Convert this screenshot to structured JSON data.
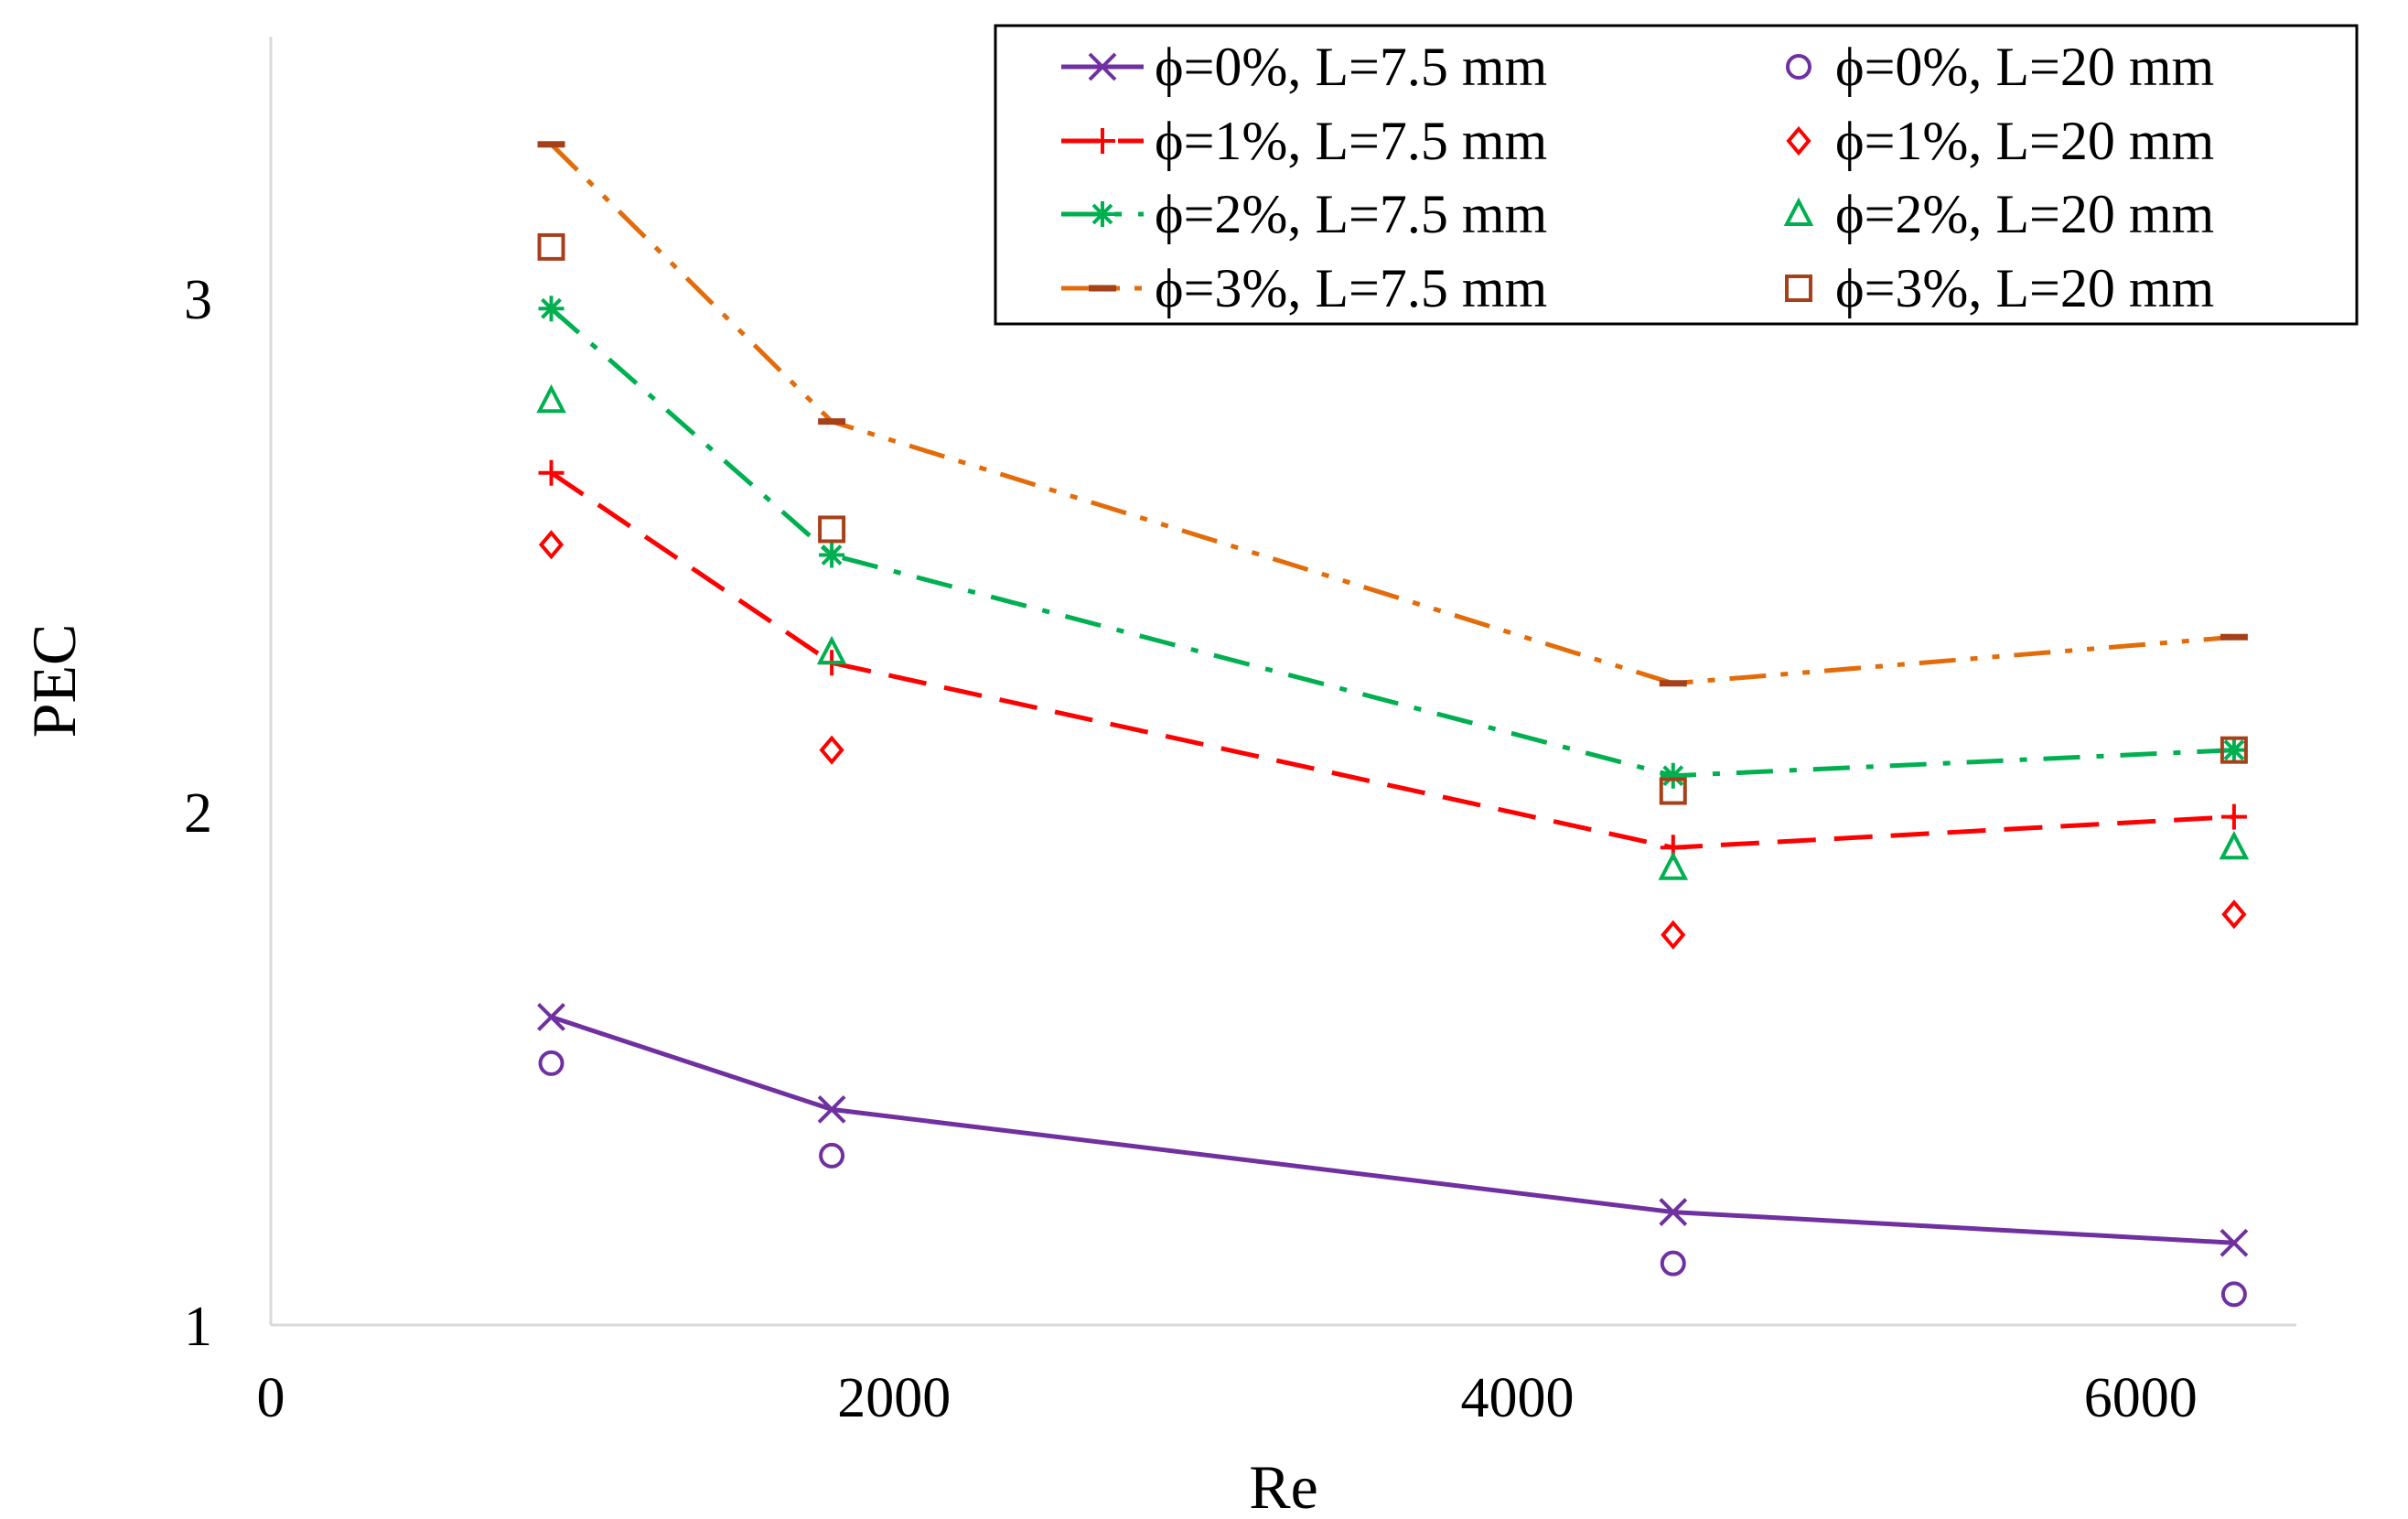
{
  "chart_data": {
    "type": "line",
    "title": "",
    "xlabel": "Re",
    "ylabel": "PEC",
    "xlim": [
      0,
      6500
    ],
    "ylim": [
      1,
      3.5
    ],
    "xticks": [
      0,
      2000,
      4000,
      6000
    ],
    "xtick_labels": [
      "0",
      "2000",
      "4000",
      "6000"
    ],
    "yticks": [
      1,
      2,
      3
    ],
    "ytick_labels": [
      "1",
      "2",
      "3"
    ],
    "grid": false,
    "legend_position": "top-right",
    "x": [
      900,
      1800,
      4500,
      6300
    ],
    "series": [
      {
        "name": "ϕ=0%, L=7.5 mm",
        "color": "#7030a0",
        "marker": "x",
        "line": "solid",
        "values": [
          1.6,
          1.42,
          1.22,
          1.16
        ]
      },
      {
        "name": "ϕ=1%, L=7.5 mm",
        "color": "#ff0000",
        "marker": "plus",
        "line": "dashed",
        "values": [
          2.66,
          2.29,
          1.93,
          1.99
        ]
      },
      {
        "name": "ϕ=2%, L=7.5 mm",
        "color": "#00b050",
        "marker": "asterisk",
        "line": "dashdot",
        "values": [
          2.98,
          2.5,
          2.07,
          2.12
        ]
      },
      {
        "name": "ϕ=3%, L=7.5 mm",
        "color": "#e36c0a",
        "marker": "dash",
        "markerColor": "#a5401b",
        "line": "dashdotdot",
        "values": [
          3.3,
          2.76,
          2.25,
          2.34
        ]
      },
      {
        "name": "ϕ=0%, L=20 mm",
        "color": "#7030a0",
        "marker": "circle",
        "line": "none",
        "values": [
          1.51,
          1.33,
          1.12,
          1.06
        ]
      },
      {
        "name": "ϕ=1%, L=20 mm",
        "color": "#ff0000",
        "marker": "diamond",
        "line": "none",
        "values": [
          2.52,
          2.12,
          1.76,
          1.8
        ]
      },
      {
        "name": "ϕ=2%, L=20 mm",
        "color": "#00b050",
        "marker": "triangle",
        "line": "none",
        "values": [
          2.8,
          2.31,
          1.89,
          1.93
        ]
      },
      {
        "name": "ϕ=3%, L=20 mm",
        "color": "#a5401b",
        "marker": "square",
        "line": "none",
        "values": [
          3.1,
          2.55,
          2.04,
          2.12
        ]
      }
    ]
  }
}
